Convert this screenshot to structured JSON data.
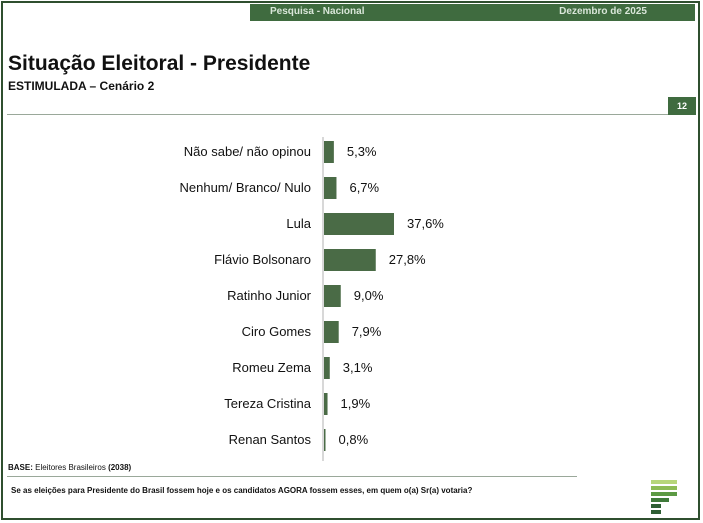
{
  "header": {
    "left_text": "Pesquisa - Nacional",
    "right_text": "Dezembro de 2025"
  },
  "title": "Situação Eleitoral - Presidente",
  "subtitle": "ESTIMULADA – Cenário 2",
  "page_number": "12",
  "footer": {
    "base_label": "BASE:",
    "base_text": "Eleitores Brasileiros",
    "base_count": "(2038)",
    "question": "Se as eleições para Presidente do Brasil fossem hoje e os candidatos AGORA fossem esses, em quem o(a) Sr(a) votaria?"
  },
  "colors": {
    "bar": "#4a6b46",
    "accent": "#3f6b3f",
    "logo_light": "#b7d67a",
    "logo_dark": "#2f5f34"
  },
  "chart_data": {
    "type": "bar",
    "orientation": "horizontal",
    "categories": [
      "Não sabe/ não opinou",
      "Nenhum/ Branco/ Nulo",
      "Lula",
      "Flávio Bolsonaro",
      "Ratinho Junior",
      "Ciro Gomes",
      "Romeu Zema",
      "Tereza Cristina",
      "Renan Santos"
    ],
    "values": [
      5.3,
      6.7,
      37.6,
      27.8,
      9.0,
      7.9,
      3.1,
      1.9,
      0.8
    ],
    "value_labels": [
      "5,3%",
      "6,7%",
      "37,6%",
      "27,8%",
      "9,0%",
      "7,9%",
      "3,1%",
      "1,9%",
      "0,8%"
    ],
    "xlim": [
      0,
      100
    ],
    "unit": "%"
  }
}
